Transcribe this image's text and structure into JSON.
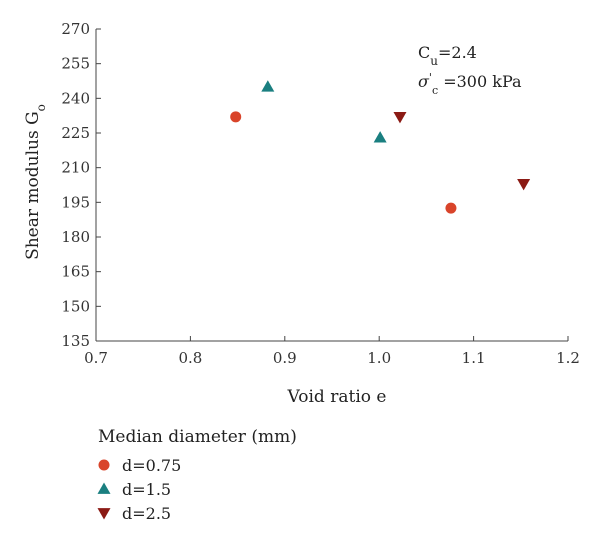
{
  "chart_data": {
    "type": "scatter",
    "title": "",
    "xlabel": "Void ratio e",
    "ylabel": {
      "main": "Shear modulus G",
      "sub": "o"
    },
    "xlim": [
      0.7,
      1.2
    ],
    "ylim": [
      135,
      270
    ],
    "xticks": [
      "0.7",
      "0.8",
      "0.9",
      "1.0",
      "1.1",
      "1.2"
    ],
    "yticks": [
      "135",
      "150",
      "165",
      "180",
      "195",
      "210",
      "225",
      "240",
      "255",
      "270"
    ],
    "grid": false,
    "annotation": {
      "cu_main": "C",
      "cu_sub": "u",
      "cu_value": "=2.4",
      "sigma_main": "σ",
      "sigma_sup": "'",
      "sigma_sub": "c",
      "sigma_value": " =300 kPa"
    },
    "legend": {
      "title": "Median diameter (mm)",
      "placement": "bottom-left"
    },
    "series": [
      {
        "name": "d=0.75",
        "marker": "circle",
        "color": "#d9442a",
        "points": [
          {
            "x": 0.848,
            "y": 232
          },
          {
            "x": 1.076,
            "y": 192.5
          }
        ]
      },
      {
        "name": "d=1.5",
        "marker": "triangle-up",
        "color": "#1a7f80",
        "points": [
          {
            "x": 0.882,
            "y": 245
          },
          {
            "x": 1.001,
            "y": 223
          }
        ]
      },
      {
        "name": "d=2.5",
        "marker": "triangle-down",
        "color": "#8b1a14",
        "points": [
          {
            "x": 1.022,
            "y": 232
          },
          {
            "x": 1.153,
            "y": 203
          }
        ]
      }
    ]
  }
}
